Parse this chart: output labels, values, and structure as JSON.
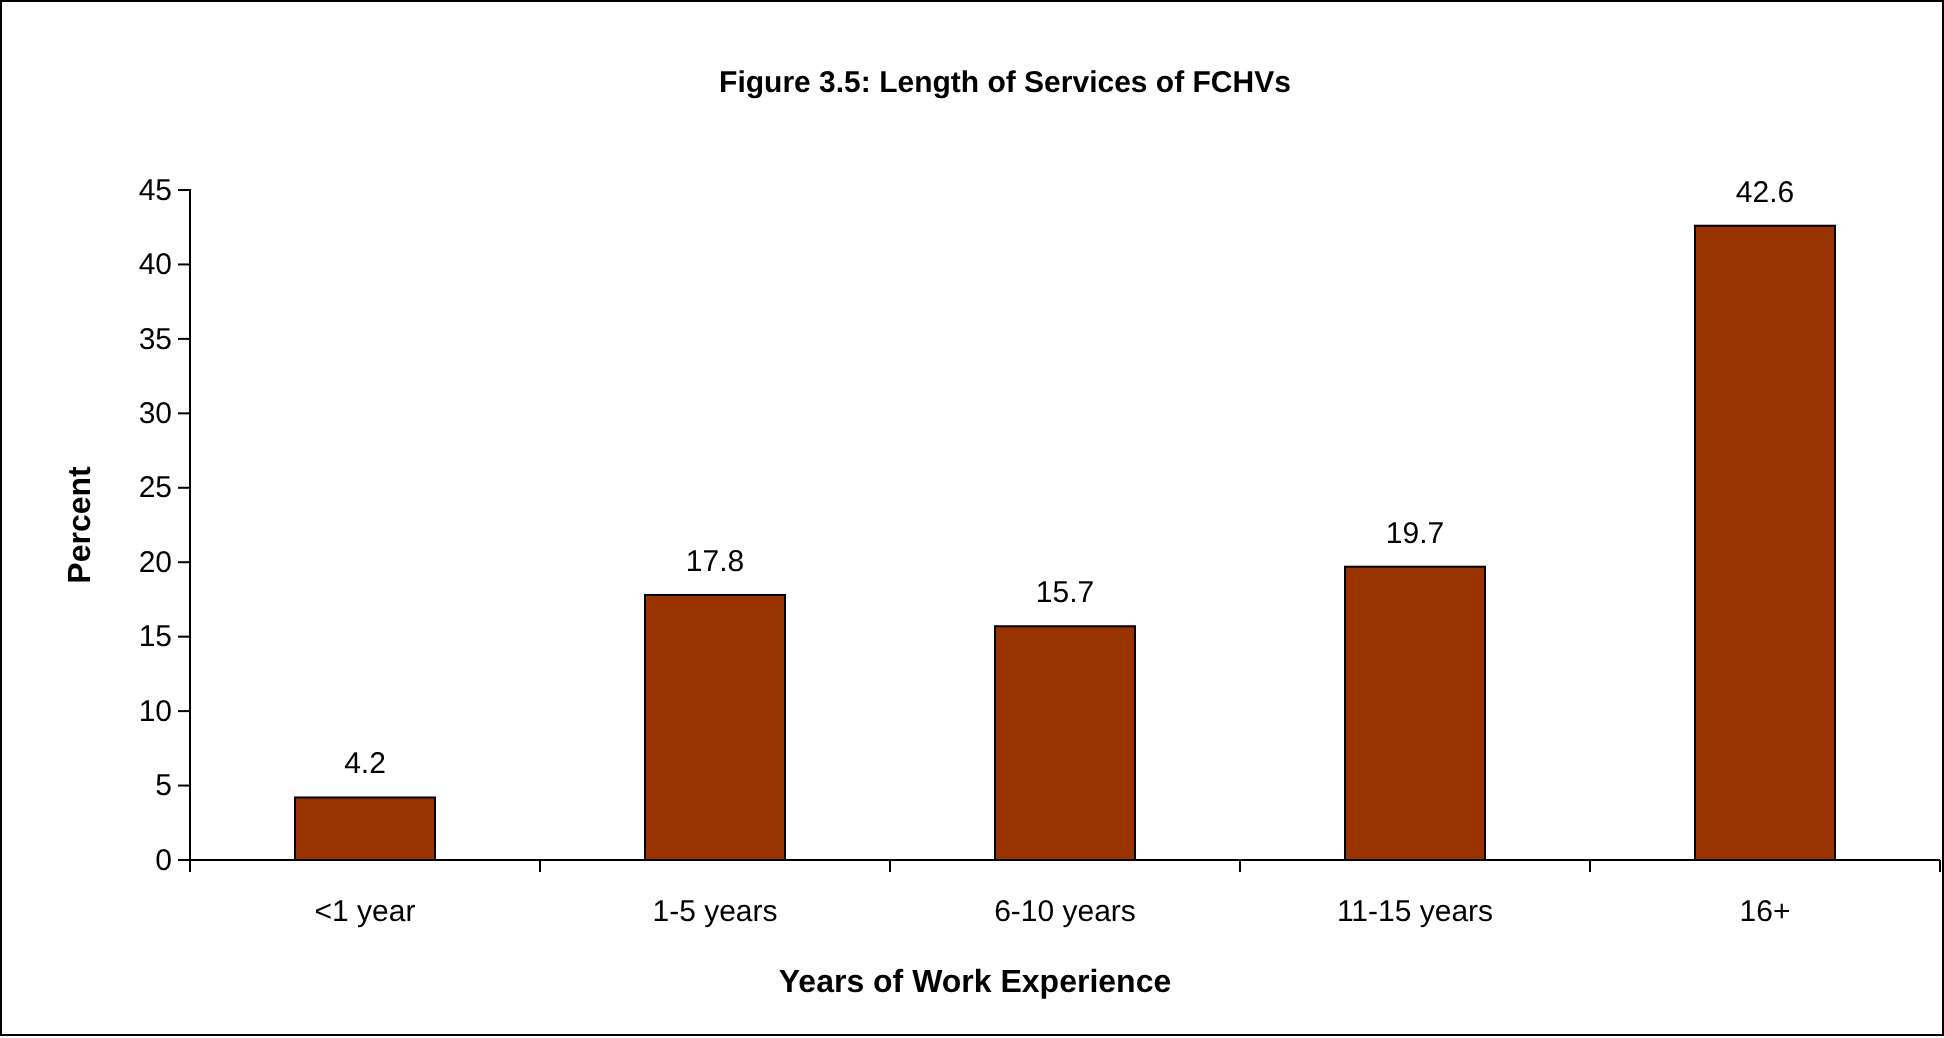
{
  "chart_data": {
    "type": "bar",
    "title": "Figure 3.5: Length of Services of FCHVs",
    "xlabel": "Years of Work Experience",
    "ylabel": "Percent",
    "categories": [
      "<1 year",
      "1-5 years",
      "6-10 years",
      "11-15 years",
      "16+"
    ],
    "values": [
      4.2,
      17.8,
      15.7,
      19.7,
      42.6
    ],
    "color": "#993300",
    "data_labels": true,
    "ylim": [
      0,
      45
    ],
    "yticks": [
      0,
      5,
      10,
      15,
      20,
      25,
      30,
      35,
      40,
      45
    ],
    "grid": false
  }
}
